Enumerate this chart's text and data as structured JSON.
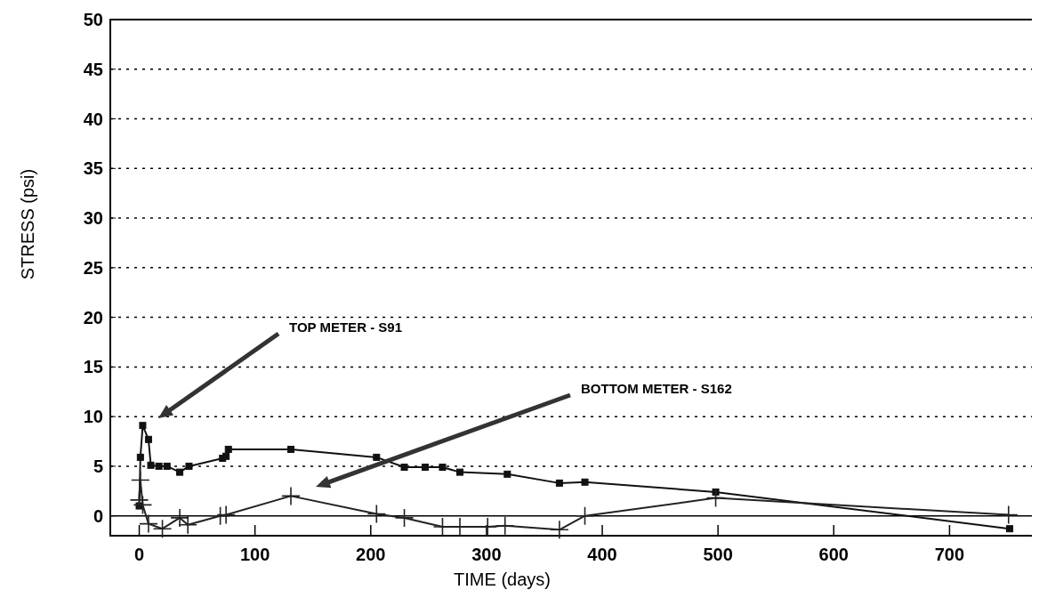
{
  "chart_data": {
    "type": "line",
    "xlabel": "TIME   (days)",
    "ylabel": "STRESS   (psi)",
    "xlim": [
      -25,
      775
    ],
    "xticks": [
      0,
      100,
      200,
      300,
      400,
      500,
      600,
      700
    ],
    "ylim": [
      -2,
      50
    ],
    "yticks": [
      0,
      5,
      10,
      15,
      20,
      25,
      30,
      35,
      40,
      45,
      50
    ],
    "grid": "y",
    "line_style": "solid",
    "ref_lines": [
      {
        "axis": "y",
        "value": 0,
        "color": "#000000"
      }
    ],
    "annotations": [
      "TOP METER - S91",
      "BOTTOM METER - S162"
    ],
    "series": [
      {
        "color": "#111111",
        "marker": "square",
        "x": [
          0,
          1,
          3,
          8,
          10,
          17,
          24,
          35,
          43,
          72,
          75,
          77,
          131,
          205,
          229,
          247,
          262,
          277,
          318,
          363,
          385,
          498,
          752
        ],
        "values": [
          1.0,
          5.9,
          9.1,
          7.7,
          5.1,
          5.0,
          5.0,
          4.4,
          5.0,
          5.8,
          6.0,
          6.7,
          6.7,
          5.9,
          4.9,
          4.9,
          4.9,
          4.4,
          4.2,
          3.3,
          3.4,
          2.4,
          -1.3
        ]
      },
      {
        "color": "#222222",
        "marker": "cross",
        "x": [
          0,
          1,
          3,
          8,
          20,
          35,
          42,
          70,
          75,
          131,
          205,
          229,
          262,
          277,
          301,
          316,
          363,
          385,
          498,
          751
        ],
        "values": [
          1.6,
          3.6,
          1.1,
          -0.8,
          -1.3,
          -0.2,
          -0.9,
          0.0,
          0.1,
          2.0,
          0.2,
          -0.2,
          -1.1,
          -1.1,
          -1.1,
          -1.0,
          -1.4,
          0.0,
          1.8,
          0.1
        ]
      }
    ]
  }
}
